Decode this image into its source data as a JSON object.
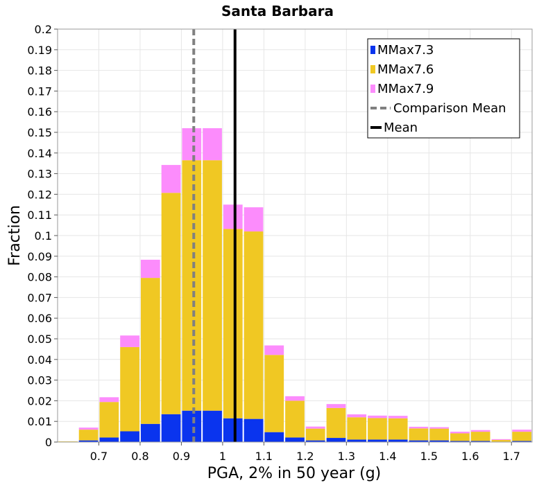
{
  "chart_data": {
    "type": "bar",
    "stacked": true,
    "title": "Santa Barbara",
    "xlabel": "PGA, 2% in 50 year (g)",
    "ylabel": "Fraction",
    "xlim": [
      0.6,
      1.75
    ],
    "ylim": [
      0,
      0.2
    ],
    "bin_width": 0.05,
    "grid": true,
    "legend_position": "top-right",
    "x_ticks": [
      "0.7",
      "0.8",
      "0.9",
      "1",
      "1.1",
      "1.2",
      "1.3",
      "1.4",
      "1.5",
      "1.6",
      "1.7"
    ],
    "y_ticks": [
      "0",
      "0.01",
      "0.02",
      "0.03",
      "0.04",
      "0.05",
      "0.06",
      "0.07",
      "0.08",
      "0.09",
      "0.1",
      "0.11",
      "0.12",
      "0.13",
      "0.14",
      "0.15",
      "0.16",
      "0.17",
      "0.18",
      "0.19",
      "0.2"
    ],
    "bin_centers": [
      0.625,
      0.675,
      0.725,
      0.775,
      0.825,
      0.875,
      0.925,
      0.975,
      1.025,
      1.075,
      1.125,
      1.175,
      1.225,
      1.275,
      1.325,
      1.375,
      1.425,
      1.475,
      1.525,
      1.575,
      1.625,
      1.675,
      1.725
    ],
    "series": [
      {
        "name": "MMax7.3",
        "color": "#0a34ee",
        "values": [
          0.0,
          0.0008,
          0.0022,
          0.0052,
          0.0088,
          0.0135,
          0.0152,
          0.0152,
          0.0115,
          0.0112,
          0.0048,
          0.0022,
          0.0008,
          0.002,
          0.0012,
          0.0012,
          0.0012,
          0.0008,
          0.0008,
          0.0005,
          0.0005,
          0.0002,
          0.0005
        ]
      },
      {
        "name": "MMax7.6",
        "color": "#f0c823",
        "values": [
          0.0003,
          0.0052,
          0.0172,
          0.0408,
          0.0707,
          0.1072,
          0.1213,
          0.1213,
          0.0917,
          0.0908,
          0.0374,
          0.0178,
          0.0057,
          0.0145,
          0.0108,
          0.0104,
          0.0103,
          0.0058,
          0.0057,
          0.0037,
          0.0045,
          0.0008,
          0.0045
        ]
      },
      {
        "name": "MMax7.9",
        "color": "#fc8cfc",
        "values": [
          0.0,
          0.001,
          0.0023,
          0.0056,
          0.0088,
          0.0135,
          0.0155,
          0.0155,
          0.0118,
          0.0117,
          0.0046,
          0.0022,
          0.001,
          0.0019,
          0.0014,
          0.0012,
          0.0012,
          0.0008,
          0.0007,
          0.0008,
          0.0008,
          0.0004,
          0.001
        ]
      }
    ],
    "lines": [
      {
        "name": "Comparison Mean",
        "x": 0.93,
        "color": "#808080",
        "style": "dashed"
      },
      {
        "name": "Mean",
        "x": 1.03,
        "color": "#000000",
        "style": "solid"
      }
    ]
  }
}
